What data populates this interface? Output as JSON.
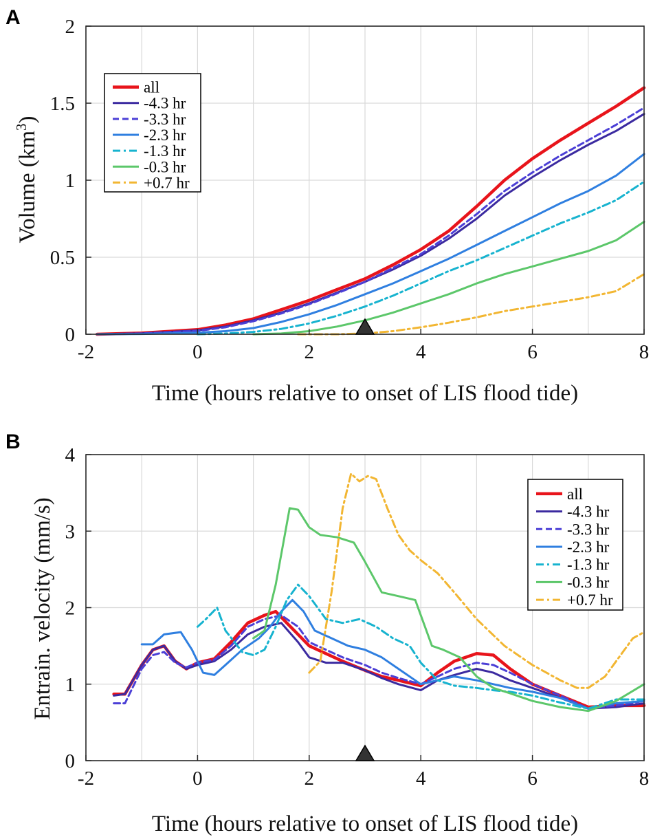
{
  "figure": {
    "panel_letters": [
      "A",
      "B"
    ],
    "marker_label": "onset marker"
  },
  "chart_data": [
    {
      "type": "line",
      "panel": "A",
      "title": "",
      "xlabel": "Time (hours relative to onset of LIS flood tide)",
      "ylabel_main": "Volume (km",
      "ylabel_sup": "3",
      "ylabel_close": ")",
      "xlim": [
        -2,
        8
      ],
      "ylim": [
        0,
        2
      ],
      "xticks": [
        -2,
        0,
        2,
        4,
        6,
        8
      ],
      "yticks": [
        0,
        0.5,
        1,
        1.5,
        2
      ],
      "xtick_labels": [
        "-2",
        "0",
        "2",
        "4",
        "6",
        "8"
      ],
      "ytick_labels": [
        "0",
        "0.5",
        "1",
        "1.5",
        "2"
      ],
      "grid": true,
      "legend_position": "top-left",
      "marker": {
        "x": 3,
        "y": 0,
        "shape": "triangle",
        "color": "#333333"
      },
      "series": [
        {
          "name": "all",
          "color": "#e8141b",
          "dash": "solid",
          "width": 4.5,
          "x": [
            -1.8,
            -1,
            0,
            0.5,
            1,
            1.5,
            2,
            2.5,
            3,
            3.5,
            4,
            4.5,
            5,
            5.5,
            6,
            6.5,
            7,
            7.5,
            8
          ],
          "y": [
            0.0,
            0.008,
            0.03,
            0.06,
            0.1,
            0.16,
            0.22,
            0.29,
            0.36,
            0.45,
            0.55,
            0.67,
            0.83,
            1.0,
            1.14,
            1.26,
            1.37,
            1.48,
            1.6
          ]
        },
        {
          "name": "-4.3 hr",
          "color": "#3b2aa0",
          "dash": "solid",
          "width": 3,
          "x": [
            -1.8,
            -1,
            0,
            0.5,
            1,
            1.5,
            2,
            2.5,
            3,
            3.5,
            4,
            4.5,
            5,
            5.5,
            6,
            6.5,
            7,
            7.5,
            8
          ],
          "y": [
            0.0,
            0.006,
            0.025,
            0.05,
            0.09,
            0.14,
            0.2,
            0.27,
            0.34,
            0.42,
            0.51,
            0.62,
            0.75,
            0.9,
            1.02,
            1.13,
            1.23,
            1.32,
            1.43
          ]
        },
        {
          "name": "-3.3 hr",
          "color": "#4b3fd6",
          "dash": "9,5",
          "width": 3,
          "x": [
            -1.8,
            -1,
            0,
            0.5,
            1,
            1.5,
            2,
            2.5,
            3,
            3.5,
            4,
            4.5,
            5,
            5.5,
            6,
            6.5,
            7,
            7.5,
            8
          ],
          "y": [
            0.0,
            0.005,
            0.022,
            0.045,
            0.085,
            0.135,
            0.195,
            0.265,
            0.34,
            0.43,
            0.52,
            0.64,
            0.78,
            0.93,
            1.05,
            1.16,
            1.26,
            1.36,
            1.47
          ]
        },
        {
          "name": "-2.3 hr",
          "color": "#2f7fe0",
          "dash": "solid",
          "width": 3,
          "x": [
            -1.8,
            -1,
            0,
            0.5,
            1,
            1.5,
            2,
            2.5,
            3,
            3.5,
            4,
            4.5,
            5,
            5.5,
            6,
            6.5,
            7,
            7.5,
            8
          ],
          "y": [
            0.0,
            0.002,
            0.01,
            0.02,
            0.04,
            0.08,
            0.13,
            0.19,
            0.26,
            0.33,
            0.41,
            0.49,
            0.58,
            0.67,
            0.76,
            0.85,
            0.93,
            1.03,
            1.17
          ]
        },
        {
          "name": "-1.3 hr",
          "color": "#17b3cf",
          "dash": "11,5,3,5",
          "width": 3,
          "x": [
            0,
            0.5,
            1,
            1.5,
            2,
            2.5,
            3,
            3.5,
            4,
            4.5,
            5,
            5.5,
            6,
            6.5,
            7,
            7.5,
            8
          ],
          "y": [
            0.0,
            0.005,
            0.015,
            0.035,
            0.07,
            0.12,
            0.18,
            0.25,
            0.33,
            0.41,
            0.48,
            0.56,
            0.64,
            0.72,
            0.79,
            0.87,
            0.99
          ]
        },
        {
          "name": "-0.3 hr",
          "color": "#5cc76a",
          "dash": "solid",
          "width": 3,
          "x": [
            1,
            1.5,
            2,
            2.5,
            3,
            3.5,
            4,
            4.5,
            5,
            5.5,
            6,
            6.5,
            7,
            7.5,
            8
          ],
          "y": [
            0.0,
            0.005,
            0.02,
            0.05,
            0.09,
            0.14,
            0.2,
            0.26,
            0.33,
            0.39,
            0.44,
            0.49,
            0.54,
            0.61,
            0.73
          ]
        },
        {
          "name": "+0.7 hr",
          "color": "#f2b632",
          "dash": "11,5,3,5",
          "width": 3,
          "x": [
            1.8,
            2.5,
            3,
            3.5,
            4,
            4.5,
            5,
            5.5,
            6,
            6.5,
            7,
            7.5,
            8
          ],
          "y": [
            0.0,
            0.0,
            0.005,
            0.02,
            0.045,
            0.075,
            0.11,
            0.15,
            0.18,
            0.21,
            0.24,
            0.28,
            0.39
          ]
        }
      ]
    },
    {
      "type": "line",
      "panel": "B",
      "title": "",
      "xlabel": "Time (hours relative to onset of LIS flood tide)",
      "ylabel_main": "Entrain. velocity (mm/s)",
      "ylabel_sup": "",
      "ylabel_close": "",
      "xlim": [
        -2,
        8
      ],
      "ylim": [
        0,
        4
      ],
      "xticks": [
        -2,
        0,
        2,
        4,
        6,
        8
      ],
      "yticks": [
        0,
        1,
        2,
        3,
        4
      ],
      "xtick_labels": [
        "-2",
        "0",
        "2",
        "4",
        "6",
        "8"
      ],
      "ytick_labels": [
        "0",
        "1",
        "2",
        "3",
        "4"
      ],
      "grid": true,
      "legend_position": "top-right",
      "marker": {
        "x": 3,
        "y": 0,
        "shape": "triangle",
        "color": "#333333"
      },
      "series": [
        {
          "name": "all",
          "color": "#e8141b",
          "dash": "solid",
          "width": 4.5,
          "x": [
            -1.5,
            -1.3,
            -1,
            -0.8,
            -0.6,
            -0.4,
            -0.2,
            0,
            0.3,
            0.6,
            0.9,
            1.2,
            1.4,
            1.6,
            1.8,
            2,
            2.3,
            2.6,
            3,
            3.3,
            3.6,
            4,
            4.3,
            4.6,
            5,
            5.3,
            5.6,
            6,
            6.5,
            7,
            7.5,
            8
          ],
          "y": [
            0.87,
            0.87,
            1.25,
            1.45,
            1.5,
            1.3,
            1.2,
            1.28,
            1.33,
            1.55,
            1.8,
            1.9,
            1.95,
            1.8,
            1.65,
            1.5,
            1.4,
            1.3,
            1.18,
            1.1,
            1.05,
            0.98,
            1.15,
            1.3,
            1.4,
            1.38,
            1.2,
            1.0,
            0.85,
            0.7,
            0.72,
            0.72
          ]
        },
        {
          "name": "-4.3 hr",
          "color": "#3b2aa0",
          "dash": "solid",
          "width": 3,
          "x": [
            -1.5,
            -1.3,
            -1,
            -0.8,
            -0.6,
            -0.4,
            -0.2,
            0,
            0.3,
            0.6,
            0.9,
            1.2,
            1.5,
            1.8,
            2,
            2.3,
            2.6,
            3,
            3.3,
            3.6,
            4,
            4.3,
            4.6,
            5,
            5.3,
            5.6,
            6,
            6.5,
            7,
            7.5,
            8
          ],
          "y": [
            0.85,
            0.87,
            1.25,
            1.45,
            1.5,
            1.3,
            1.2,
            1.25,
            1.3,
            1.45,
            1.65,
            1.75,
            1.8,
            1.55,
            1.35,
            1.28,
            1.28,
            1.18,
            1.08,
            1.0,
            0.92,
            1.05,
            1.12,
            1.2,
            1.15,
            1.05,
            0.95,
            0.82,
            0.68,
            0.7,
            0.75
          ]
        },
        {
          "name": "-3.3 hr",
          "color": "#4b3fd6",
          "dash": "9,5",
          "width": 3,
          "x": [
            -1.5,
            -1.3,
            -1,
            -0.8,
            -0.6,
            -0.4,
            -0.2,
            0,
            0.3,
            0.6,
            0.9,
            1.2,
            1.5,
            1.8,
            2,
            2.3,
            2.6,
            3,
            3.3,
            3.6,
            4,
            4.3,
            4.6,
            5,
            5.3,
            5.6,
            6,
            6.5,
            7,
            7.5,
            8
          ],
          "y": [
            0.75,
            0.75,
            1.2,
            1.38,
            1.42,
            1.28,
            1.22,
            1.28,
            1.32,
            1.5,
            1.75,
            1.85,
            1.9,
            1.75,
            1.55,
            1.45,
            1.35,
            1.25,
            1.15,
            1.08,
            1.0,
            1.1,
            1.2,
            1.28,
            1.25,
            1.15,
            1.0,
            0.85,
            0.68,
            0.72,
            0.78
          ]
        },
        {
          "name": "-2.3 hr",
          "color": "#2f7fe0",
          "dash": "solid",
          "width": 3,
          "x": [
            -1,
            -0.8,
            -0.6,
            -0.3,
            -0.1,
            0.1,
            0.3,
            0.5,
            0.8,
            1.1,
            1.3,
            1.5,
            1.7,
            1.9,
            2.1,
            2.4,
            2.7,
            3,
            3.3,
            3.6,
            4,
            4.3,
            4.6,
            5,
            5.3,
            5.6,
            6,
            6.5,
            7,
            7.5,
            8
          ],
          "y": [
            1.52,
            1.52,
            1.65,
            1.68,
            1.45,
            1.15,
            1.12,
            1.25,
            1.45,
            1.6,
            1.75,
            1.95,
            2.1,
            1.95,
            1.7,
            1.6,
            1.5,
            1.45,
            1.35,
            1.2,
            1.0,
            1.05,
            1.1,
            1.05,
            1.0,
            0.95,
            0.9,
            0.82,
            0.68,
            0.75,
            0.78
          ]
        },
        {
          "name": "-1.3 hr",
          "color": "#17b3cf",
          "dash": "11,5,3,5",
          "width": 3,
          "x": [
            0,
            0.15,
            0.35,
            0.5,
            0.8,
            1,
            1.2,
            1.4,
            1.6,
            1.8,
            2,
            2.3,
            2.6,
            2.9,
            3.2,
            3.5,
            3.8,
            4,
            4.3,
            4.6,
            5,
            5.3,
            5.6,
            6,
            6.5,
            7,
            7.5,
            8
          ],
          "y": [
            1.75,
            1.85,
            2.0,
            1.7,
            1.42,
            1.38,
            1.45,
            1.75,
            2.1,
            2.3,
            2.15,
            1.85,
            1.8,
            1.85,
            1.75,
            1.6,
            1.5,
            1.28,
            1.05,
            0.98,
            0.95,
            0.92,
            0.9,
            0.85,
            0.76,
            0.68,
            0.8,
            0.8
          ]
        },
        {
          "name": "-0.3 hr",
          "color": "#5cc76a",
          "dash": "solid",
          "width": 3,
          "x": [
            1,
            1.2,
            1.4,
            1.55,
            1.65,
            1.8,
            2,
            2.2,
            2.5,
            2.8,
            3,
            3.3,
            3.6,
            3.9,
            4.05,
            4.2,
            4.4,
            4.7,
            5,
            5.3,
            5.6,
            6,
            6.5,
            7,
            7.5,
            8
          ],
          "y": [
            1.6,
            1.7,
            2.3,
            2.9,
            3.3,
            3.28,
            3.05,
            2.95,
            2.92,
            2.85,
            2.6,
            2.2,
            2.15,
            2.1,
            1.8,
            1.5,
            1.45,
            1.35,
            1.1,
            0.95,
            0.88,
            0.78,
            0.7,
            0.65,
            0.78,
            1.0
          ]
        },
        {
          "name": "+0.7 hr",
          "color": "#f2b632",
          "dash": "11,5,3,5",
          "width": 3,
          "x": [
            2,
            2.2,
            2.4,
            2.6,
            2.75,
            2.9,
            3.05,
            3.2,
            3.4,
            3.6,
            3.8,
            4,
            4.3,
            4.6,
            5,
            5.5,
            6,
            6.5,
            6.8,
            7,
            7.3,
            7.6,
            7.8,
            8
          ],
          "y": [
            1.15,
            1.3,
            2.2,
            3.3,
            3.75,
            3.65,
            3.72,
            3.68,
            3.3,
            2.95,
            2.75,
            2.62,
            2.45,
            2.2,
            1.85,
            1.5,
            1.25,
            1.05,
            0.95,
            0.95,
            1.1,
            1.4,
            1.6,
            1.68
          ]
        }
      ]
    }
  ]
}
